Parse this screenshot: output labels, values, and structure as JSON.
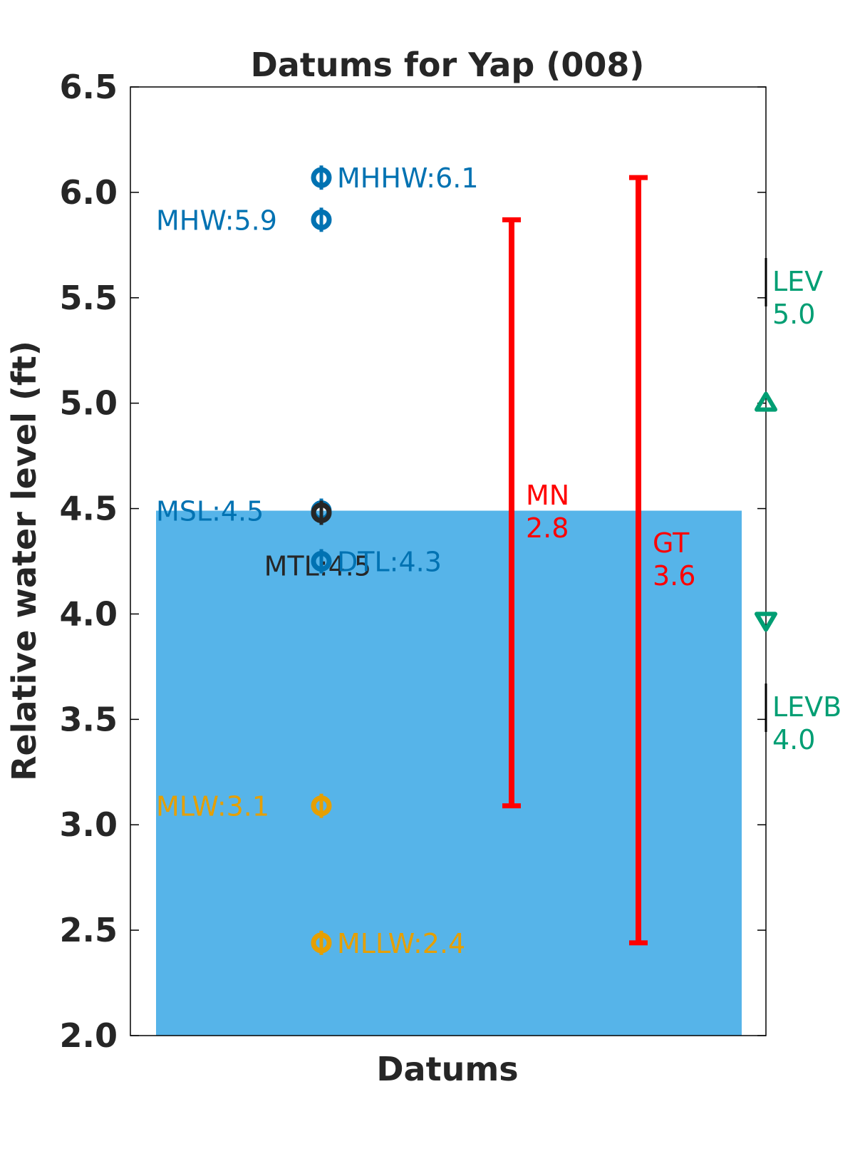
{
  "chart_data": {
    "type": "scatter",
    "title": "Datums for Yap (008)",
    "xlabel": "Datums",
    "ylabel": "Relative water level (ft)",
    "ylim": [
      2.0,
      6.5
    ],
    "yticks": [
      "2.0",
      "2.5",
      "3.0",
      "3.5",
      "4.0",
      "4.5",
      "5.0",
      "5.5",
      "6.0",
      "6.5"
    ],
    "grid": false,
    "water_fill": {
      "top": 4.49,
      "color": "#56b4e9"
    },
    "points": [
      {
        "name": "MHHW",
        "label": "MHHW:6.1",
        "y": 6.07,
        "color": "#0072b2",
        "label_side": "right"
      },
      {
        "name": "MHW",
        "label": "MHW:5.9",
        "y": 5.87,
        "color": "#0072b2",
        "label_side": "left"
      },
      {
        "name": "MSL",
        "label": "MSL:4.5",
        "y": 4.49,
        "color": "#0072b2",
        "label_side": "left"
      },
      {
        "name": "MTL",
        "label": "MTL:4.5",
        "y": 4.48,
        "color": "#262626",
        "label_side": "left-low"
      },
      {
        "name": "DTL",
        "label": "DTL:4.3",
        "y": 4.25,
        "color": "#0072b2",
        "label_side": "right"
      },
      {
        "name": "MLW",
        "label": "MLW:3.1",
        "y": 3.09,
        "color": "#e69f00",
        "label_side": "left"
      },
      {
        "name": "MLLW",
        "label": "MLLW:2.4",
        "y": 2.44,
        "color": "#e69f00",
        "label_side": "right"
      }
    ],
    "ranges": [
      {
        "name": "MN",
        "label_name": "MN",
        "label_value": "2.8",
        "low": 3.09,
        "high": 5.87,
        "color": "#ff0000"
      },
      {
        "name": "GT",
        "label_name": "GT",
        "label_value": "3.6",
        "low": 2.44,
        "high": 6.07,
        "color": "#ff0000"
      }
    ],
    "extremes": [
      {
        "name": "LEV",
        "label_name": "LEV",
        "label_value": "5.0",
        "y": 5.0,
        "marker": "triangle-up",
        "color": "#009e73"
      },
      {
        "name": "LEVB",
        "label_name": "LEVB",
        "label_value": "4.0",
        "y": 3.97,
        "marker": "triangle-down",
        "color": "#009e73"
      }
    ]
  }
}
